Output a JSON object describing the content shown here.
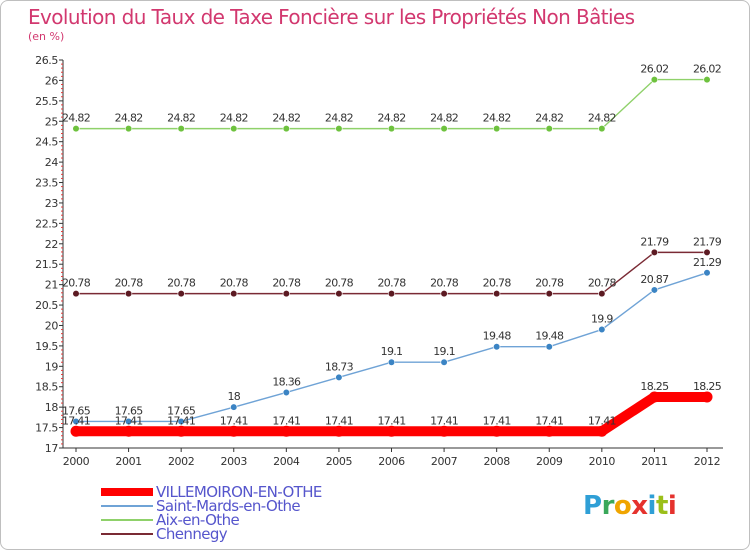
{
  "title": "Evolution du Taux de Taxe Foncière sur les Propriétés Non Bâties",
  "unit_label": "(en %)",
  "logo": {
    "text": "Proxiti",
    "colors": [
      "#2f9fd6",
      "#3aa85a",
      "#f0a500",
      "#e5322d",
      "#2f9fd6",
      "#9bbf1a",
      "#e5322d"
    ]
  },
  "chart_data": {
    "type": "line",
    "categories": [
      "2000",
      "2001",
      "2002",
      "2003",
      "2004",
      "2005",
      "2006",
      "2007",
      "2008",
      "2009",
      "2010",
      "2011",
      "2012"
    ],
    "ylim": [
      17,
      26.5
    ],
    "ystep": 0.5,
    "yticks": [
      "17",
      "17.5",
      "18",
      "18.5",
      "19",
      "19.5",
      "20",
      "20.5",
      "21",
      "21.5",
      "22",
      "22.5",
      "23",
      "23.5",
      "24",
      "24.5",
      "25",
      "25.5",
      "26",
      "26.5"
    ],
    "grid": false,
    "series": [
      {
        "name": "VILLEMOIRON-EN-OTHE",
        "color": "#ff0000",
        "marker": "#ff0000",
        "width": 10,
        "values": [
          17.41,
          17.41,
          17.41,
          17.41,
          17.41,
          17.41,
          17.41,
          17.41,
          17.41,
          17.41,
          17.41,
          18.25,
          18.25
        ],
        "labels": [
          "17.41",
          "17.41",
          "17.41",
          "17.41",
          "17.41",
          "17.41",
          "17.41",
          "17.41",
          "17.41",
          "17.41",
          "17.41",
          "18.25",
          "18.25"
        ]
      },
      {
        "name": "Saint-Mards-en-Othe",
        "color": "#6fa3d6",
        "marker": "#3b84c4",
        "width": 1.4,
        "values": [
          17.65,
          17.65,
          17.65,
          18,
          18.36,
          18.73,
          19.1,
          19.1,
          19.48,
          19.48,
          19.9,
          20.87,
          21.29
        ],
        "labels": [
          "17.65",
          "17.65",
          "17.65",
          "18",
          "18.36",
          "18.73",
          "19.1",
          "19.1",
          "19.48",
          "19.48",
          "19.9",
          "20.87",
          "21.29"
        ]
      },
      {
        "name": "Aix-en-Othe",
        "color": "#8fd16a",
        "marker": "#6ec23e",
        "width": 1.4,
        "values": [
          24.82,
          24.82,
          24.82,
          24.82,
          24.82,
          24.82,
          24.82,
          24.82,
          24.82,
          24.82,
          24.82,
          26.02,
          26.02
        ],
        "labels": [
          "24.82",
          "24.82",
          "24.82",
          "24.82",
          "24.82",
          "24.82",
          "24.82",
          "24.82",
          "24.82",
          "24.82",
          "24.82",
          "26.02",
          "26.02"
        ]
      },
      {
        "name": "Chennegy",
        "color": "#7a2a34",
        "marker": "#5c1a22",
        "width": 1.4,
        "values": [
          20.78,
          20.78,
          20.78,
          20.78,
          20.78,
          20.78,
          20.78,
          20.78,
          20.78,
          20.78,
          20.78,
          21.79,
          21.79
        ],
        "labels": [
          "20.78",
          "20.78",
          "20.78",
          "20.78",
          "20.78",
          "20.78",
          "20.78",
          "20.78",
          "20.78",
          "20.78",
          "20.78",
          "21.79",
          "21.79"
        ]
      }
    ],
    "legend": [
      {
        "name": "VILLEMOIRON-EN-OTHE",
        "color": "#ff0000",
        "thickness": 8
      },
      {
        "name": "Saint-Mards-en-Othe",
        "color": "#6fa3d6",
        "thickness": 2
      },
      {
        "name": "Aix-en-Othe",
        "color": "#8fd16a",
        "thickness": 2
      },
      {
        "name": "Chennegy",
        "color": "#7a2a34",
        "thickness": 2
      }
    ]
  }
}
